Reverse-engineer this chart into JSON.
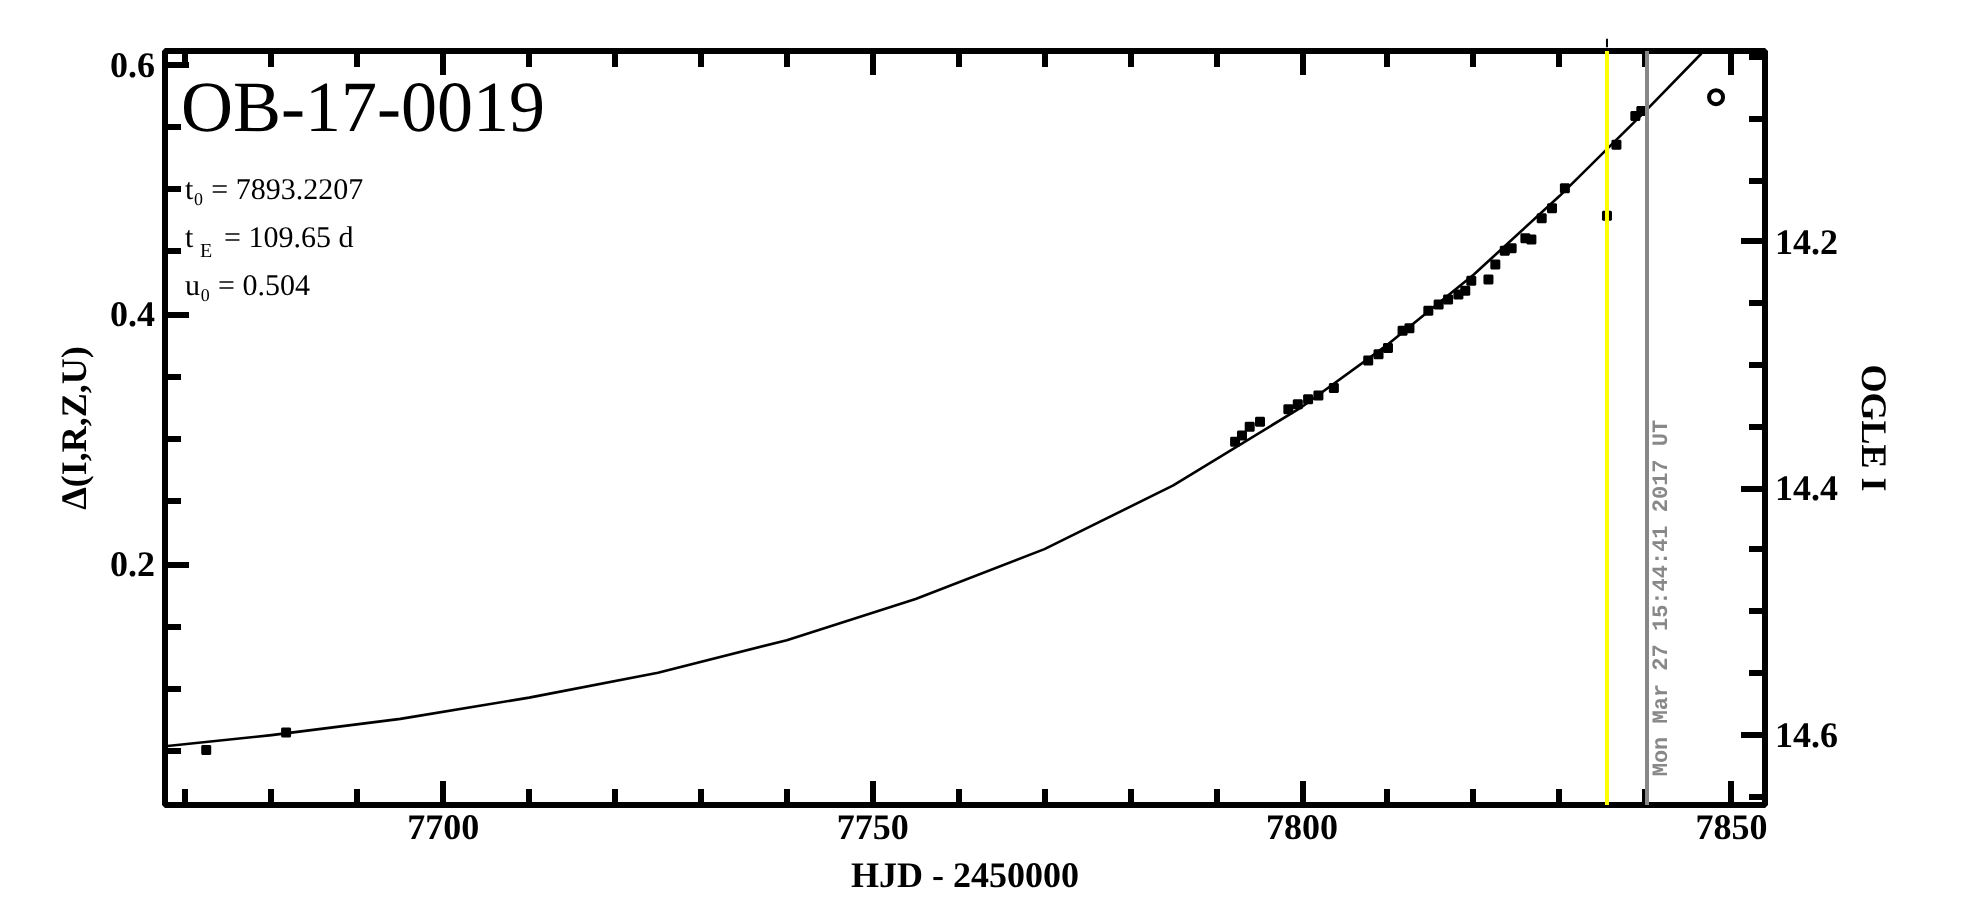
{
  "chart_data": {
    "type": "line",
    "title": "OB-17-0019",
    "annotations": [
      "t₀ = 7893.2207",
      "t$_{E}$ = 109.65 d",
      "u₀ = 0.504",
      {
        "text": "Mon Mar 27 15:44:41 2017 UT",
        "x": 7840.16,
        "y": 0.03
      }
    ],
    "xlabel": "HJD - 2450000",
    "ylabel": "Δ(I,R,Z,U)",
    "y2label": "OGLE I",
    "xlim": [
      7667.6,
      7853.9
    ],
    "ylim": [
      0.007,
      0.611
    ],
    "y2lim": [
      14.657,
      14.045
    ],
    "xticks": [
      {
        "value": 7670,
        "label": null
      },
      {
        "value": 7680,
        "label": null
      },
      {
        "value": 7690,
        "label": null
      },
      7700,
      {
        "value": 7710,
        "label": null
      },
      {
        "value": 7720,
        "label": null
      },
      {
        "value": 7730,
        "label": null
      },
      {
        "value": 7740,
        "label": null
      },
      7750,
      {
        "value": 7760,
        "label": null
      },
      {
        "value": 7770,
        "label": null
      },
      {
        "value": 7780,
        "label": null
      },
      {
        "value": 7790,
        "label": null
      },
      7800,
      {
        "value": 7810,
        "label": null
      },
      {
        "value": 7820,
        "label": null
      },
      {
        "value": 7830,
        "label": null
      },
      {
        "value": 7840,
        "label": null
      },
      7850
    ],
    "yticks": [
      {
        "value": 0.05,
        "label": null
      },
      {
        "value": 0.1,
        "label": null
      },
      {
        "value": 0.15,
        "label": null
      },
      0.2,
      {
        "value": 0.25,
        "label": null
      },
      {
        "value": 0.3,
        "label": null
      },
      {
        "value": 0.35,
        "label": null
      },
      0.4,
      {
        "value": 0.45,
        "label": null
      },
      {
        "value": 0.5,
        "label": null
      },
      {
        "value": 0.55,
        "label": null
      },
      0.6
    ],
    "y2ticks": [
      {
        "value": 14.65,
        "label": null
      },
      14.6,
      {
        "value": 14.55,
        "label": null
      },
      {
        "value": 14.5,
        "label": null
      },
      {
        "value": 14.45,
        "label": null
      },
      14.4,
      {
        "value": 14.35,
        "label": null
      },
      {
        "value": 14.3,
        "label": null
      },
      {
        "value": 14.25,
        "label": null
      },
      14.2,
      {
        "value": 14.15,
        "label": null
      },
      {
        "value": 14.1,
        "label": null
      },
      {
        "value": 14.05,
        "label": null
      }
    ],
    "ref_lines": [
      {
        "axis": "x",
        "value": 7835.5,
        "label": null,
        "color": "#ffff00"
      },
      {
        "axis": "x",
        "value": 7840.16,
        "label": null,
        "color": "#888888"
      }
    ],
    "series": [
      {
        "color": "#000000",
        "x": [
          7667.6,
          7680,
          7695,
          7710,
          7725,
          7740,
          7755,
          7770,
          7785,
          7800,
          7810,
          7820,
          7830,
          7840,
          7846.5
        ],
        "values": [
          0.054,
          0.063,
          0.076,
          0.093,
          0.113,
          0.139,
          0.172,
          0.212,
          0.263,
          0.326,
          0.376,
          0.432,
          0.495,
          0.563,
          0.609
        ]
      },
      {
        "type": "scatter",
        "color": "#000000",
        "marker": "square",
        "x": [
          7672.4,
          7681.7,
          7792.2,
          7793.0,
          7793.9,
          7795.1,
          7798.4,
          7799.5,
          7800.7,
          7801.9,
          7803.7,
          7807.7,
          7808.9,
          7810.0,
          7811.7,
          7812.5,
          7814.7,
          7815.9,
          7817.0,
          7818.2,
          7819.0,
          7819.7,
          7821.7,
          7822.5,
          7823.6,
          7824.4,
          7826.0,
          7826.7,
          7827.9,
          7829.1,
          7830.6,
          7835.5,
          7836.6,
          7838.8,
          7839.5
        ],
        "values": [
          0.051,
          0.065,
          0.298,
          0.303,
          0.31,
          0.314,
          0.324,
          0.328,
          0.332,
          0.335,
          0.341,
          0.363,
          0.368,
          0.373,
          0.387,
          0.389,
          0.403,
          0.408,
          0.412,
          0.416,
          0.419,
          0.427,
          0.428,
          0.44,
          0.451,
          0.453,
          0.461,
          0.46,
          0.477,
          0.485,
          0.501,
          0.479,
          0.536,
          0.559,
          0.563
        ]
      },
      {
        "type": "scatter",
        "color": "#000000",
        "marker": "circle",
        "x": [
          7848.2
        ],
        "values": [
          0.574
        ]
      }
    ]
  }
}
